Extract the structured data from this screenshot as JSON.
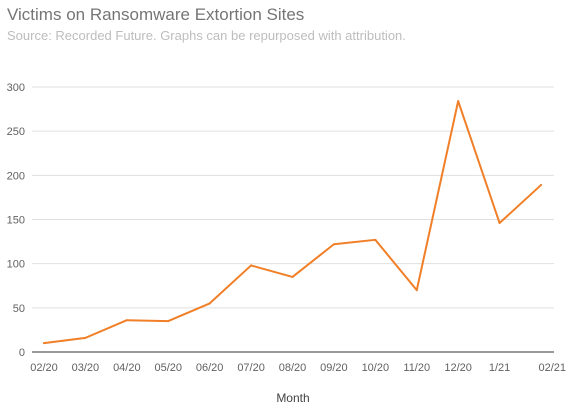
{
  "title": "Victims on Ransomware Extortion Sites",
  "subtitle": "Source: Recorded Future. Graphs can be repurposed with attribution.",
  "colors": {
    "line": "#f07f28",
    "grid": "#e0e0e0",
    "axis": "#333333"
  },
  "chart_data": {
    "type": "line",
    "title": "Victims on Ransomware Extortion Sites",
    "subtitle": "Source: Recorded Future. Graphs can be repurposed with attribution.",
    "xlabel": "Month",
    "ylabel": "",
    "categories": [
      "02/20",
      "03/20",
      "04/20",
      "05/20",
      "06/20",
      "07/20",
      "08/20",
      "09/20",
      "10/20",
      "11/20",
      "12/20",
      "1/21",
      "02/21"
    ],
    "series": [
      {
        "values": [
          10,
          16,
          36,
          35,
          55,
          98,
          85,
          122,
          127,
          70,
          284,
          146,
          189
        ]
      }
    ],
    "ylim": [
      0,
      300
    ],
    "yticks": [
      0,
      50,
      100,
      150,
      200,
      250,
      300
    ],
    "grid": true,
    "legend": "none"
  }
}
